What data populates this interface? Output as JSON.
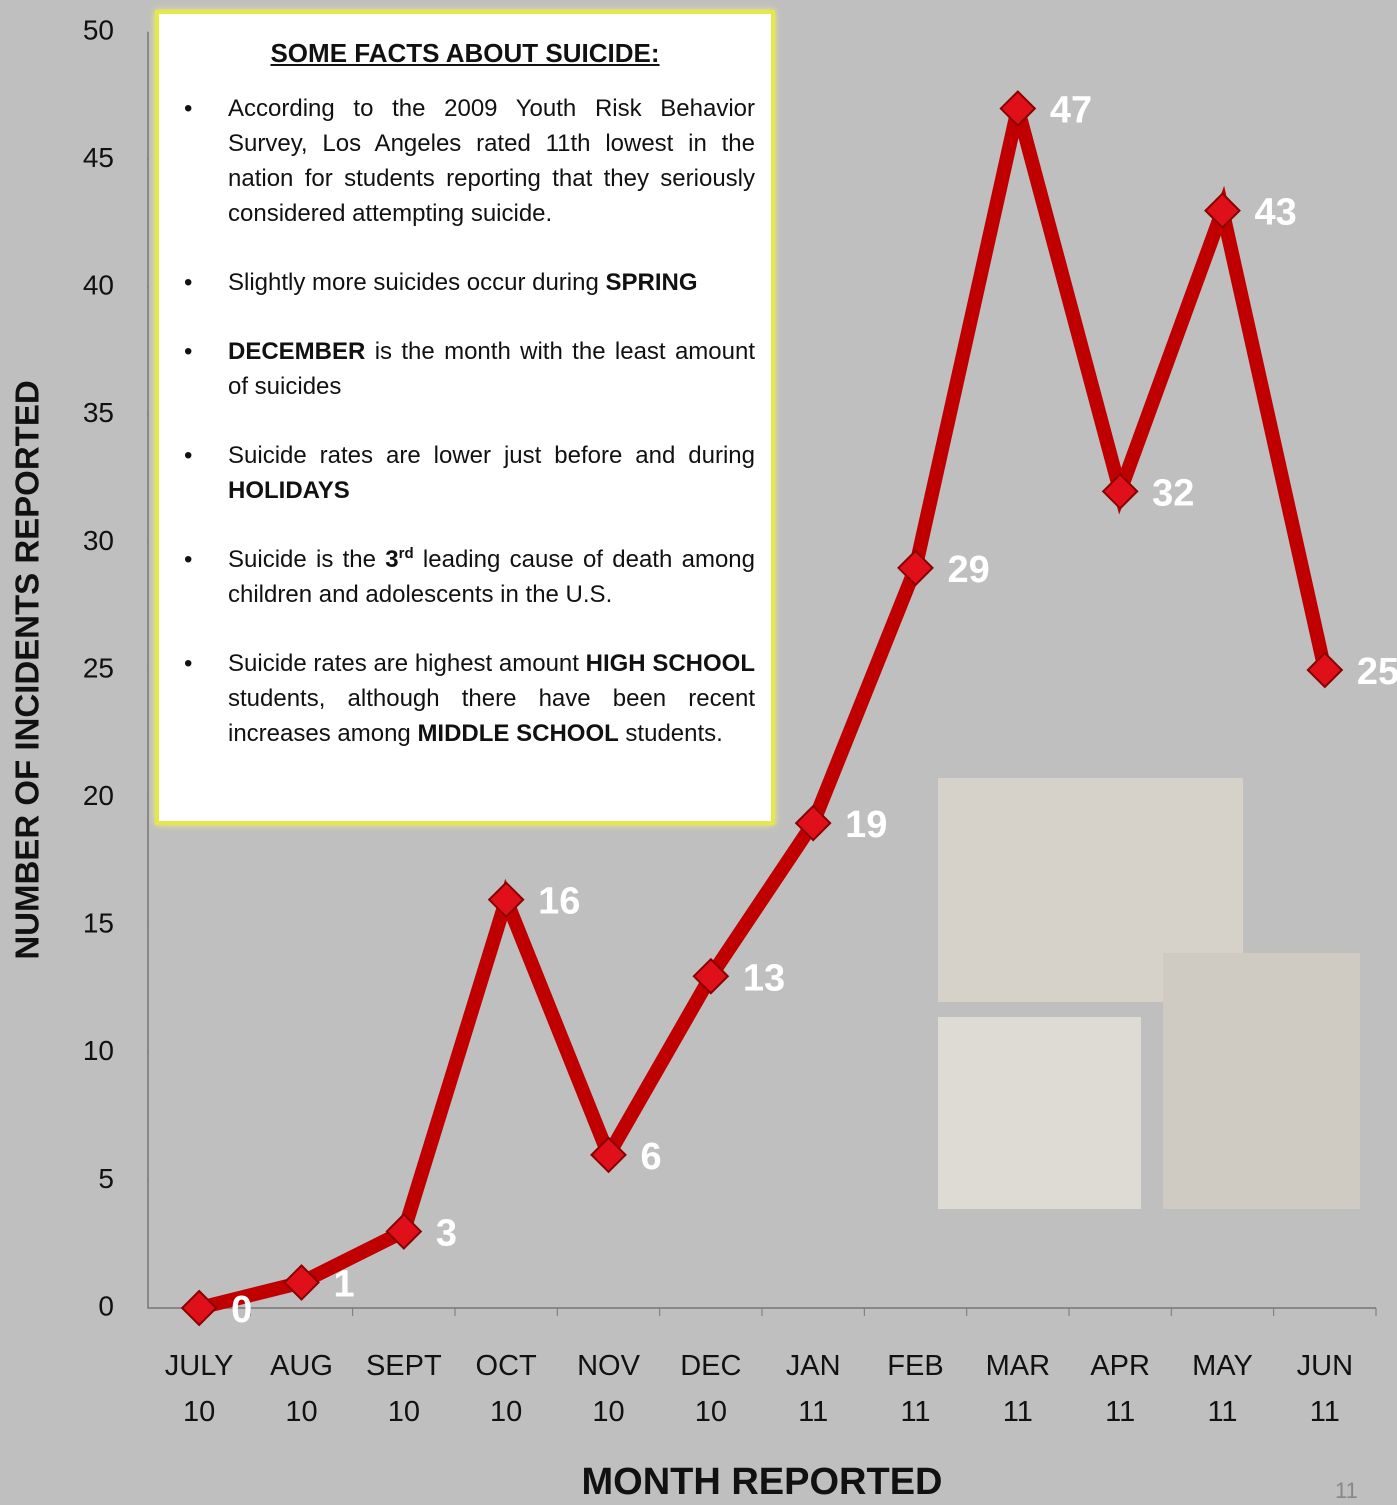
{
  "chart_data": {
    "type": "line",
    "categories": [
      "JULY 10",
      "AUG 10",
      "SEPT 10",
      "OCT 10",
      "NOV 10",
      "DEC 10",
      "JAN 11",
      "FEB 11",
      "MAR 11",
      "APR 11",
      "MAY 11",
      "JUN 11"
    ],
    "values": [
      0,
      1,
      3,
      16,
      6,
      13,
      19,
      29,
      47,
      32,
      43,
      25
    ],
    "color": "#c00000",
    "ylim": [
      0,
      50
    ],
    "yticks": [
      0,
      5,
      10,
      15,
      20,
      25,
      30,
      35,
      40,
      45,
      50
    ],
    "ylabel": "NUMBER OF INCIDENTS REPORTED",
    "xlabel": "MONTH REPORTED"
  },
  "facts": {
    "title": "SOME FACTS ABOUT SUICIDE:",
    "bullets": [
      [
        {
          "text": "According to the 2009 Youth Risk Behavior Survey, Los Angeles rated 11th lowest in the nation for students reporting that they seriously considered attempting suicide."
        }
      ],
      [
        {
          "text": "Slightly more suicides occur during "
        },
        {
          "text": "SPRING",
          "bold": true
        }
      ],
      [
        {
          "text": "DECEMBER",
          "bold": true
        },
        {
          "text": " is the month with the least amount of suicides"
        }
      ],
      [
        {
          "text": "Suicide rates are lower just before and during "
        },
        {
          "text": "HOLIDAYS",
          "bold": true
        }
      ],
      [
        {
          "text": "Suicide is the "
        },
        {
          "text": "3",
          "bold": true
        },
        {
          "text": "rd",
          "bold": true,
          "sup": true
        },
        {
          "text": " leading cause of death among children and adolescents in the U.S."
        }
      ],
      [
        {
          "text": "Suicide rates are highest amount "
        },
        {
          "text": "HIGH SCHOOL",
          "bold": true
        },
        {
          "text": " students, although there have been recent increases among "
        },
        {
          "text": "MIDDLE SCHOOL",
          "bold": true
        },
        {
          "text": " students."
        }
      ]
    ]
  },
  "page_number": "11"
}
